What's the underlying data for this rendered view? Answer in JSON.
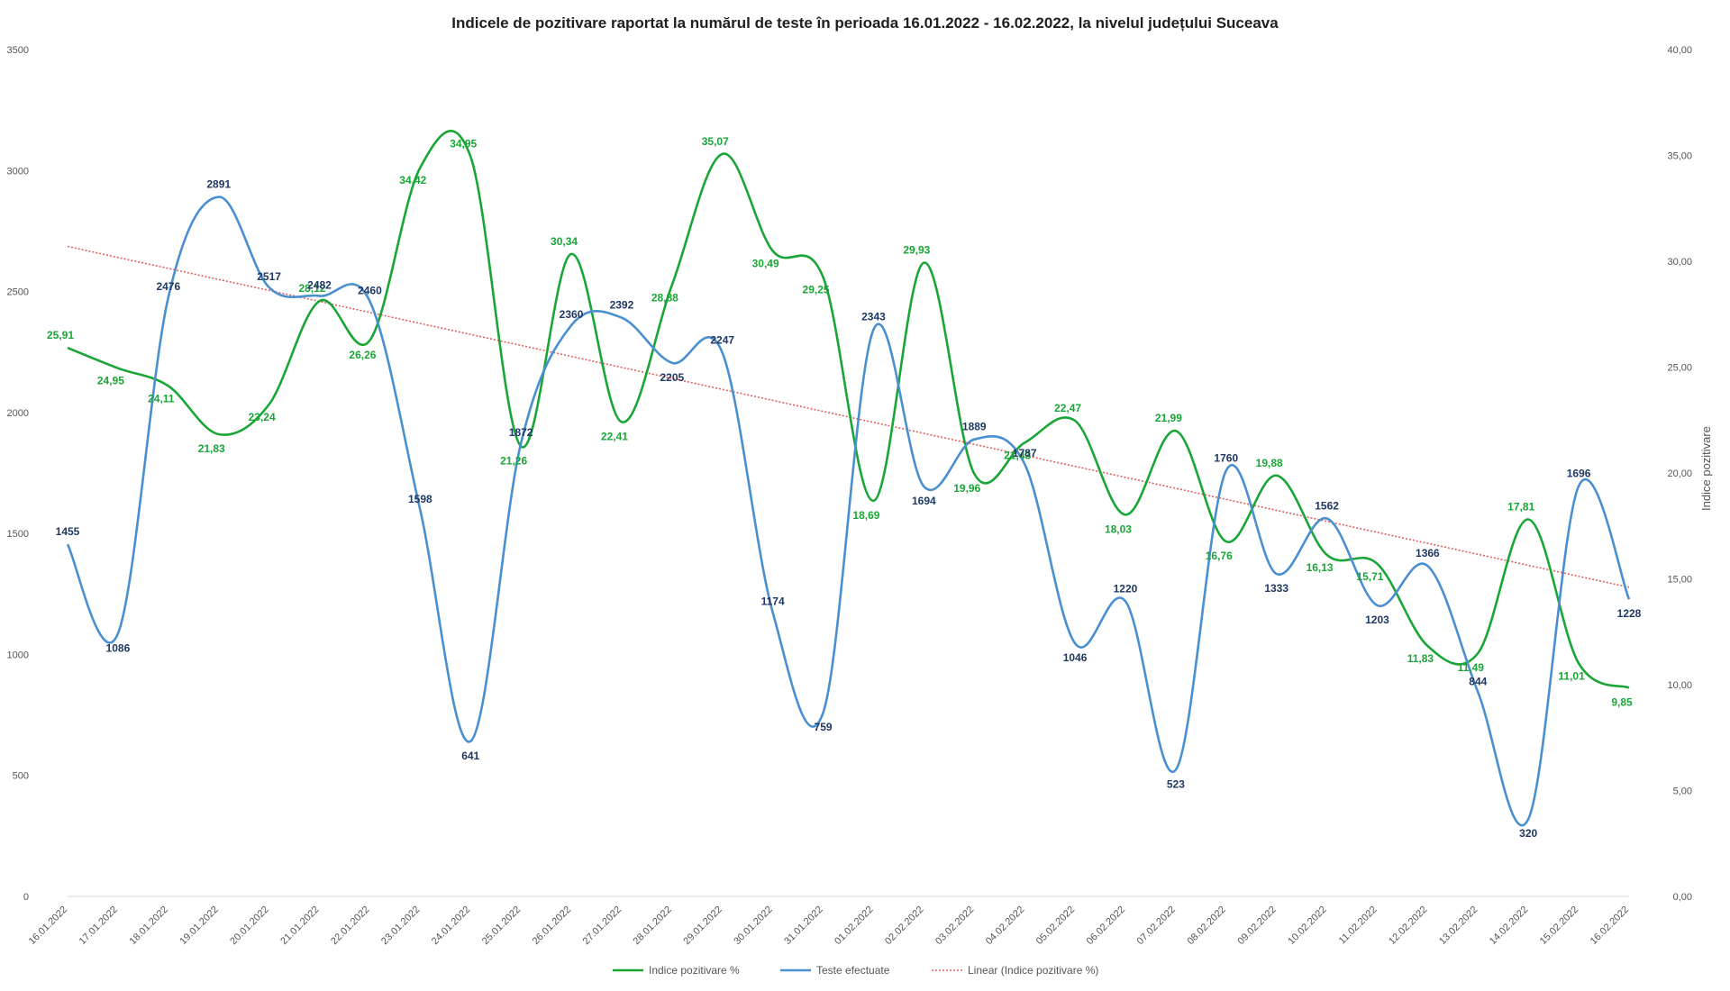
{
  "chart_data": {
    "type": "line",
    "title": "Indicele de pozitivare  raportat la numărul  de teste în perioada  16.01.2022 - 16.02.2022, la nivelul județului  Suceava",
    "categories": [
      "16.01.2022",
      "17.01.2022",
      "18.01.2022",
      "19.01.2022",
      "20.01.2022",
      "21.01.2022",
      "22.01.2022",
      "23.01.2022",
      "24.01.2022",
      "25.01.2022",
      "26.01.2022",
      "27.01.2022",
      "28.01.2022",
      "29.01.2022",
      "30.01.2022",
      "31.01.2022",
      "01.02.2022",
      "02.02.2022",
      "03.02.2022",
      "04.02.2022",
      "05.02.2022",
      "06.02.2022",
      "07.02.2022",
      "08.02.2022",
      "09.02.2022",
      "10.02.2022",
      "11.02.2022",
      "12.02.2022",
      "13.02.2022",
      "14.02.2022",
      "15.02.2022",
      "16.02.2022"
    ],
    "y_left": {
      "ylim": [
        0,
        3500
      ],
      "ticks": [
        "0",
        "500",
        "1000",
        "1500",
        "2000",
        "2500",
        "3000",
        "3500"
      ]
    },
    "y_right": {
      "ylim": [
        0,
        40
      ],
      "ylabel": "Indice pozitivare",
      "ticks": [
        "0,00",
        "5,00",
        "10,00",
        "15,00",
        "20,00",
        "25,00",
        "30,00",
        "35,00",
        "40,00"
      ]
    },
    "series": [
      {
        "name": "Indice pozitivare %",
        "axis": "right",
        "color": "#1aa637",
        "values": [
          25.91,
          24.95,
          24.11,
          21.83,
          23.24,
          28.12,
          26.26,
          34.42,
          34.95,
          21.26,
          30.34,
          22.41,
          28.88,
          35.07,
          30.49,
          29.25,
          18.69,
          29.93,
          19.96,
          21.43,
          22.47,
          18.03,
          21.99,
          16.76,
          19.88,
          16.13,
          15.71,
          11.83,
          11.49,
          17.81,
          11.01,
          9.85
        ],
        "labels": [
          "25,91",
          "24,95",
          "24,11",
          "21,83",
          "23,24",
          "28,12",
          "26,26",
          "34,42",
          "34,95",
          "21,26",
          "30,34",
          "22,41",
          "28,88",
          "35,07",
          "30,49",
          "29,25",
          "18,69",
          "29,93",
          "19,96",
          "21,43",
          "22,47",
          "18,03",
          "21,99",
          "16,76",
          "19,88",
          "16,13",
          "15,71",
          "11,83",
          "11,49",
          "17,81",
          "11,01",
          "9,85"
        ]
      },
      {
        "name": "Teste efectuate",
        "axis": "left",
        "color": "#4a8fd0",
        "values": [
          1455,
          1086,
          2476,
          2891,
          2517,
          2482,
          2460,
          1598,
          641,
          1872,
          2360,
          2392,
          2205,
          2247,
          1174,
          759,
          2343,
          1694,
          1889,
          1787,
          1046,
          1220,
          523,
          1760,
          1333,
          1562,
          1203,
          1366,
          844,
          320,
          1696,
          1228
        ],
        "labels": [
          "1455",
          "1086",
          "2476",
          "2891",
          "2517",
          "2482",
          "2460",
          "1598",
          "641",
          "1872",
          "2360",
          "2392",
          "2205",
          "2247",
          "1174",
          "759",
          "2343",
          "1694",
          "1889",
          "1787",
          "1046",
          "1220",
          "523",
          "1760",
          "1333",
          "1562",
          "1203",
          "1366",
          "844",
          "320",
          "1696",
          "1228"
        ]
      }
    ],
    "trendline": {
      "name": "Linear (Indice pozitivare %)",
      "axis": "right",
      "color": "#e06060",
      "style": "dotted",
      "start": 30.7,
      "end": 14.6
    },
    "legend": {
      "position": "bottom"
    },
    "grid": false
  }
}
